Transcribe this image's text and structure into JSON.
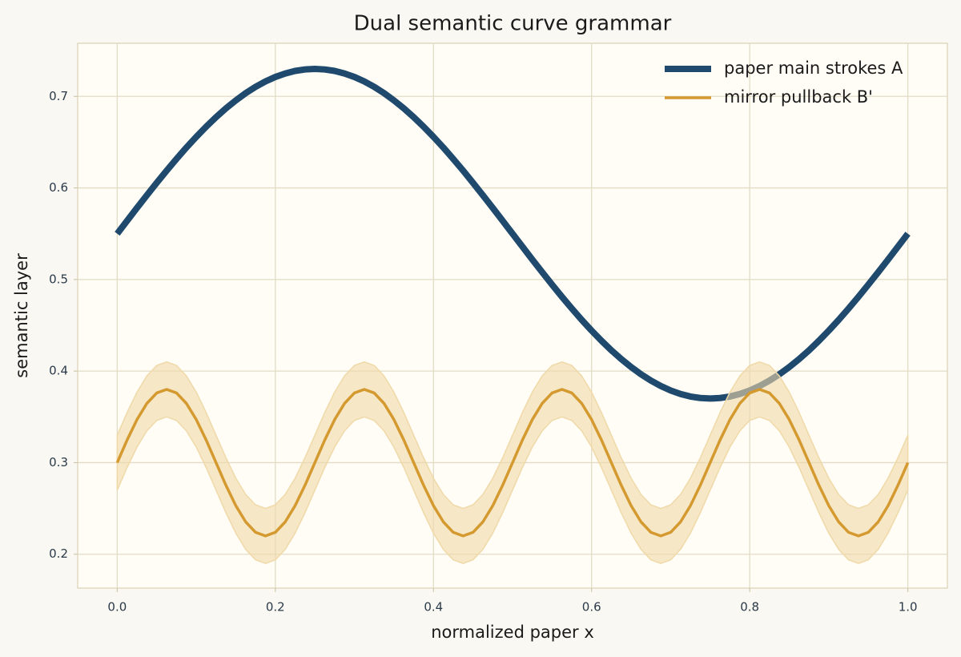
{
  "chart_data": {
    "type": "line",
    "title": "Dual semantic curve grammar",
    "x_label": "normalized paper x",
    "y_label": "semantic layer",
    "xlim": [
      -0.05,
      1.05
    ],
    "ylim": [
      0.163,
      0.758
    ],
    "xticks": [
      {
        "value": 0,
        "label": "0.0"
      },
      {
        "value": 0.2,
        "label": "0.2"
      },
      {
        "value": 0.4,
        "label": "0.4"
      },
      {
        "value": 0.6,
        "label": "0.6"
      },
      {
        "value": 0.8,
        "label": "0.8"
      },
      {
        "value": 1,
        "label": "1.0"
      }
    ],
    "yticks": [
      0.2,
      0.3,
      0.4,
      0.5,
      0.6,
      0.7
    ],
    "grid": true,
    "legend": "upper right",
    "x": [
      0,
      0.0125,
      0.025,
      0.0375,
      0.05,
      0.0625,
      0.075,
      0.0875,
      0.1,
      0.1125,
      0.125,
      0.1375,
      0.15,
      0.1625,
      0.175,
      0.1875,
      0.2,
      0.2125,
      0.225,
      0.2375,
      0.25,
      0.2625,
      0.275,
      0.2875,
      0.3,
      0.3125,
      0.325,
      0.3375,
      0.35,
      0.3625,
      0.375,
      0.3875,
      0.4,
      0.4125,
      0.425,
      0.4375,
      0.45,
      0.4625,
      0.475,
      0.4875,
      0.5,
      0.5125,
      0.525,
      0.5375,
      0.55,
      0.5625,
      0.575,
      0.5875,
      0.6,
      0.6125,
      0.625,
      0.6375,
      0.65,
      0.6625,
      0.675,
      0.6875,
      0.7,
      0.7125,
      0.725,
      0.7375,
      0.75,
      0.7625,
      0.775,
      0.7875,
      0.8,
      0.8125,
      0.825,
      0.8375,
      0.85,
      0.8625,
      0.875,
      0.8875,
      0.9,
      0.9125,
      0.925,
      0.9375,
      0.95,
      0.9625,
      0.975,
      0.9875,
      1
    ],
    "series": [
      {
        "name": "paper main strokes A",
        "color": "#1f4a6e",
        "width": 8,
        "values": [
          0.55,
          0.5641,
          0.5782,
          0.592,
          0.6056,
          0.6189,
          0.6317,
          0.6441,
          0.6558,
          0.6669,
          0.6773,
          0.6869,
          0.6956,
          0.7035,
          0.7104,
          0.7163,
          0.7212,
          0.725,
          0.7278,
          0.7294,
          0.73,
          0.7294,
          0.7278,
          0.725,
          0.7212,
          0.7163,
          0.7104,
          0.7035,
          0.6956,
          0.6869,
          0.6773,
          0.6669,
          0.6558,
          0.6441,
          0.6317,
          0.6189,
          0.6056,
          0.592,
          0.5782,
          0.5641,
          0.55,
          0.5359,
          0.5218,
          0.508,
          0.4944,
          0.4811,
          0.4683,
          0.4559,
          0.4442,
          0.4331,
          0.4227,
          0.4131,
          0.4044,
          0.3965,
          0.3896,
          0.3837,
          0.3788,
          0.375,
          0.3722,
          0.3706,
          0.37,
          0.3706,
          0.3722,
          0.375,
          0.3788,
          0.3837,
          0.3896,
          0.3965,
          0.4044,
          0.4131,
          0.4227,
          0.4331,
          0.4442,
          0.4559,
          0.4683,
          0.4811,
          0.4944,
          0.508,
          0.5218,
          0.5359,
          0.55
        ]
      },
      {
        "name": "mirror pullback B'",
        "color": "#d49a30",
        "width": 3.5,
        "band_color": "#f0d9a8",
        "values": [
          0.3,
          0.3247,
          0.347,
          0.3647,
          0.3761,
          0.38,
          0.3761,
          0.3647,
          0.347,
          0.3247,
          0.3,
          0.2753,
          0.253,
          0.2353,
          0.2239,
          0.22,
          0.2239,
          0.2353,
          0.253,
          0.2753,
          0.3,
          0.3247,
          0.347,
          0.3647,
          0.3761,
          0.38,
          0.3761,
          0.3647,
          0.347,
          0.3247,
          0.3,
          0.2753,
          0.253,
          0.2353,
          0.2239,
          0.22,
          0.2239,
          0.2353,
          0.253,
          0.2753,
          0.3,
          0.3247,
          0.347,
          0.3647,
          0.3761,
          0.38,
          0.3761,
          0.3647,
          0.347,
          0.3247,
          0.3,
          0.2753,
          0.253,
          0.2353,
          0.2239,
          0.22,
          0.2239,
          0.2353,
          0.253,
          0.2753,
          0.3,
          0.3247,
          0.347,
          0.3647,
          0.3761,
          0.38,
          0.3761,
          0.3647,
          0.347,
          0.3247,
          0.3,
          0.2753,
          0.253,
          0.2353,
          0.2239,
          0.22,
          0.2239,
          0.2353,
          0.253,
          0.2753,
          0.3
        ],
        "band_lower": [
          0.27,
          0.2947,
          0.317,
          0.3347,
          0.3461,
          0.35,
          0.3461,
          0.3347,
          0.317,
          0.2947,
          0.27,
          0.2453,
          0.223,
          0.2053,
          0.1939,
          0.19,
          0.1939,
          0.2053,
          0.223,
          0.2453,
          0.27,
          0.2947,
          0.317,
          0.3347,
          0.3461,
          0.35,
          0.3461,
          0.3347,
          0.317,
          0.2947,
          0.27,
          0.2453,
          0.223,
          0.2053,
          0.1939,
          0.19,
          0.1939,
          0.2053,
          0.223,
          0.2453,
          0.27,
          0.2947,
          0.317,
          0.3347,
          0.3461,
          0.35,
          0.3461,
          0.3347,
          0.317,
          0.2947,
          0.27,
          0.2453,
          0.223,
          0.2053,
          0.1939,
          0.19,
          0.1939,
          0.2053,
          0.223,
          0.2453,
          0.27,
          0.2947,
          0.317,
          0.3347,
          0.3461,
          0.35,
          0.3461,
          0.3347,
          0.317,
          0.2947,
          0.27,
          0.2453,
          0.223,
          0.2053,
          0.1939,
          0.19,
          0.1939,
          0.2053,
          0.223,
          0.2453,
          0.27
        ],
        "band_upper": [
          0.33,
          0.3547,
          0.377,
          0.3947,
          0.4061,
          0.41,
          0.4061,
          0.3947,
          0.377,
          0.3547,
          0.33,
          0.3053,
          0.283,
          0.2653,
          0.2539,
          0.25,
          0.2539,
          0.2653,
          0.283,
          0.3053,
          0.33,
          0.3547,
          0.377,
          0.3947,
          0.4061,
          0.41,
          0.4061,
          0.3947,
          0.377,
          0.3547,
          0.33,
          0.3053,
          0.283,
          0.2653,
          0.2539,
          0.25,
          0.2539,
          0.2653,
          0.283,
          0.3053,
          0.33,
          0.3547,
          0.377,
          0.3947,
          0.4061,
          0.41,
          0.4061,
          0.3947,
          0.377,
          0.3547,
          0.33,
          0.3053,
          0.283,
          0.2653,
          0.2539,
          0.25,
          0.2539,
          0.2653,
          0.283,
          0.3053,
          0.33,
          0.3547,
          0.377,
          0.3947,
          0.4061,
          0.41,
          0.4061,
          0.3947,
          0.377,
          0.3547,
          0.33,
          0.3053,
          0.283,
          0.2653,
          0.2539,
          0.25,
          0.2539,
          0.2653,
          0.283,
          0.3053,
          0.33
        ]
      }
    ]
  }
}
